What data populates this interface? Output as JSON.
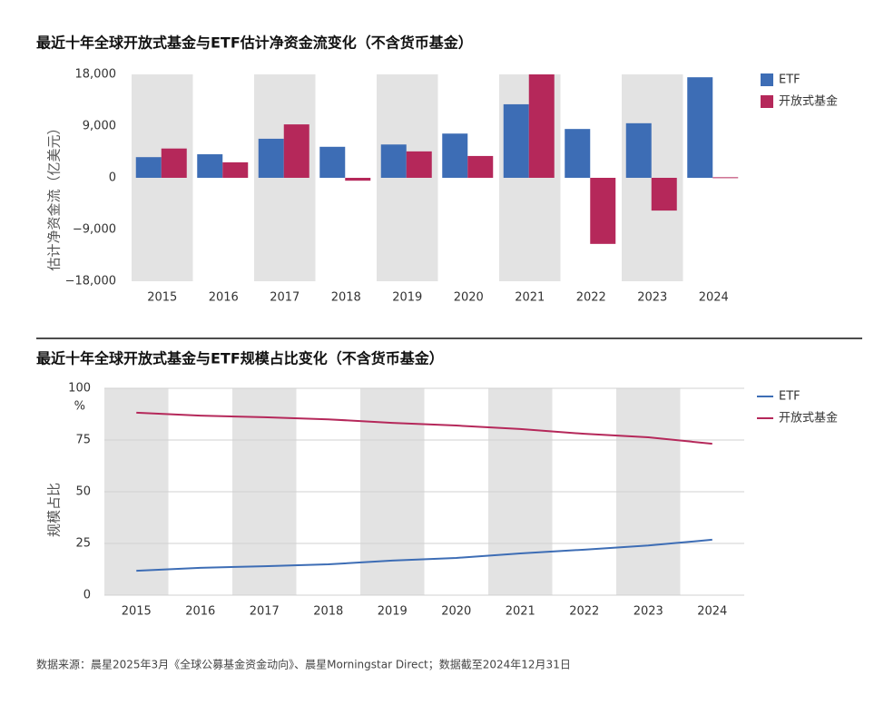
{
  "chart_data": [
    {
      "type": "bar",
      "title": "最近十年全球开放式基金与ETF估计净资金流变化（不含货币基金）",
      "ylabel": "估计净资金流（亿美元）",
      "categories": [
        "2015",
        "2016",
        "2017",
        "2018",
        "2019",
        "2020",
        "2021",
        "2022",
        "2023",
        "2024"
      ],
      "series": [
        {
          "name": "ETF",
          "color": "#3d6db5",
          "values": [
            3600,
            4100,
            6800,
            5400,
            5800,
            7700,
            12800,
            8500,
            9500,
            17500
          ]
        },
        {
          "name": "开放式基金",
          "color": "#b5285a",
          "values": [
            5100,
            2700,
            9300,
            -500,
            4600,
            3800,
            18000,
            -11500,
            -5700,
            100
          ]
        }
      ],
      "ylim": [
        -18000,
        18000
      ],
      "yticks": [
        {
          "value": 18000,
          "label": "18,000"
        },
        {
          "value": 9000,
          "label": "9,000"
        },
        0,
        {
          "value": -9000,
          "label": "−9,000"
        },
        {
          "value": -18000,
          "label": "−18,000"
        }
      ],
      "grid": false,
      "legend": "right"
    },
    {
      "type": "line",
      "title": "最近十年全球开放式基金与ETF规模占比变化（不含货币基金）",
      "ylabel": "规模占比",
      "y_unit": "%",
      "categories": [
        "2015",
        "2016",
        "2017",
        "2018",
        "2019",
        "2020",
        "2021",
        "2022",
        "2023",
        "2024"
      ],
      "series": [
        {
          "name": "ETF",
          "color": "#3d6db5",
          "values": [
            11.8,
            13.2,
            14,
            14.9,
            16.7,
            18,
            20.2,
            22,
            24,
            26.8
          ]
        },
        {
          "name": "开放式基金",
          "color": "#b5285a",
          "values": [
            88.2,
            86.8,
            86,
            85,
            83.3,
            82,
            80.3,
            78,
            76.3,
            73.2
          ]
        }
      ],
      "ylim": [
        0,
        100
      ],
      "yticks": [
        100,
        75,
        50,
        25,
        0
      ],
      "grid": true,
      "legend": "right"
    }
  ],
  "source": "数据来源：晨星2025年3月《全球公募基金资金动向》、晨星Morningstar Direct；数据截至2024年12月31日"
}
